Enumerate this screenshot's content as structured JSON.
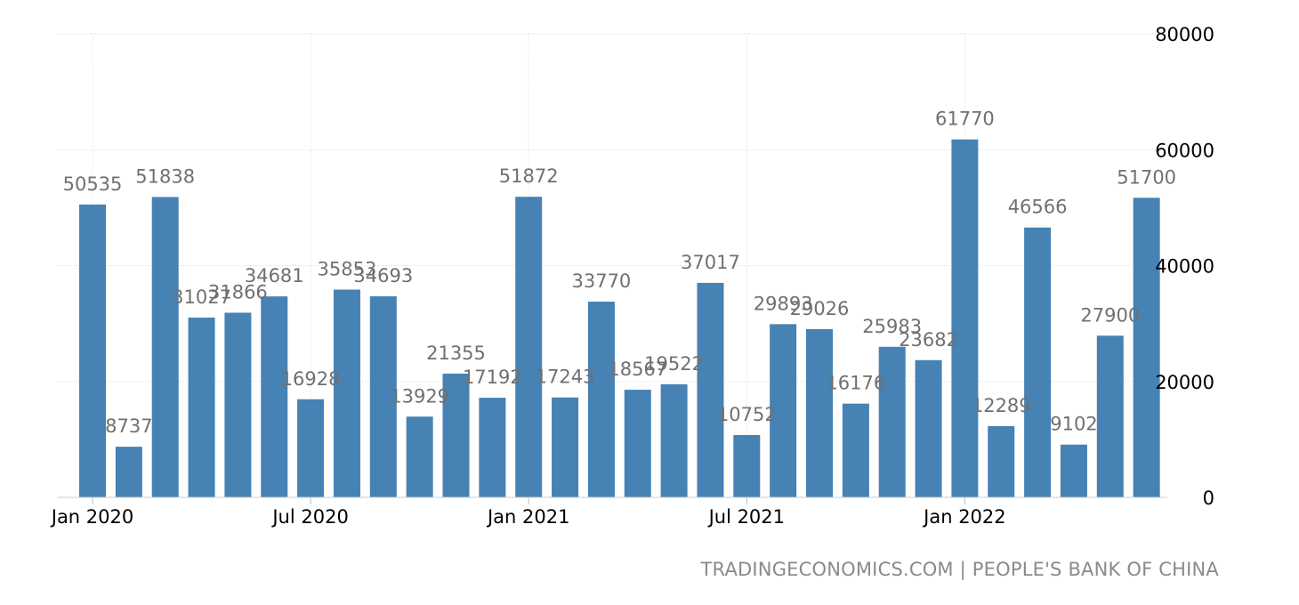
{
  "chart_data": {
    "type": "bar",
    "categories": [
      "Jan 2020",
      "Feb 2020",
      "Mar 2020",
      "Apr 2020",
      "May 2020",
      "Jun 2020",
      "Jul 2020",
      "Aug 2020",
      "Sep 2020",
      "Oct 2020",
      "Nov 2020",
      "Dec 2020",
      "Jan 2021",
      "Feb 2021",
      "Mar 2021",
      "Apr 2021",
      "May 2021",
      "Jun 2021",
      "Jul 2021",
      "Aug 2021",
      "Sep 2021",
      "Oct 2021",
      "Nov 2021",
      "Dec 2021",
      "Jan 2022",
      "Feb 2022",
      "Mar 2022",
      "Apr 2022",
      "May 2022",
      "Jun 2022"
    ],
    "values": [
      50535,
      8737,
      51838,
      31027,
      31866,
      34681,
      16928,
      35853,
      34693,
      13929,
      21355,
      17192,
      51872,
      17243,
      33770,
      18567,
      19522,
      37017,
      10752,
      29893,
      29026,
      16176,
      25983,
      23682,
      61770,
      12289,
      46566,
      9102,
      27900,
      51700
    ],
    "x_tick_labels": [
      "Jan 2020",
      "Jul 2020",
      "Jan 2021",
      "Jul 2021",
      "Jan 2022"
    ],
    "x_tick_indices": [
      0,
      6,
      12,
      18,
      24
    ],
    "y_ticks": [
      0,
      20000,
      40000,
      60000,
      80000
    ],
    "ylim": [
      0,
      80000
    ],
    "y_axis_side": "right",
    "grid": true,
    "bar_color": "#4682b4",
    "label_color": "#707070",
    "title": "",
    "xlabel": "",
    "ylabel": ""
  },
  "source_text": "TRADINGECONOMICS.COM | PEOPLE'S BANK OF CHINA"
}
